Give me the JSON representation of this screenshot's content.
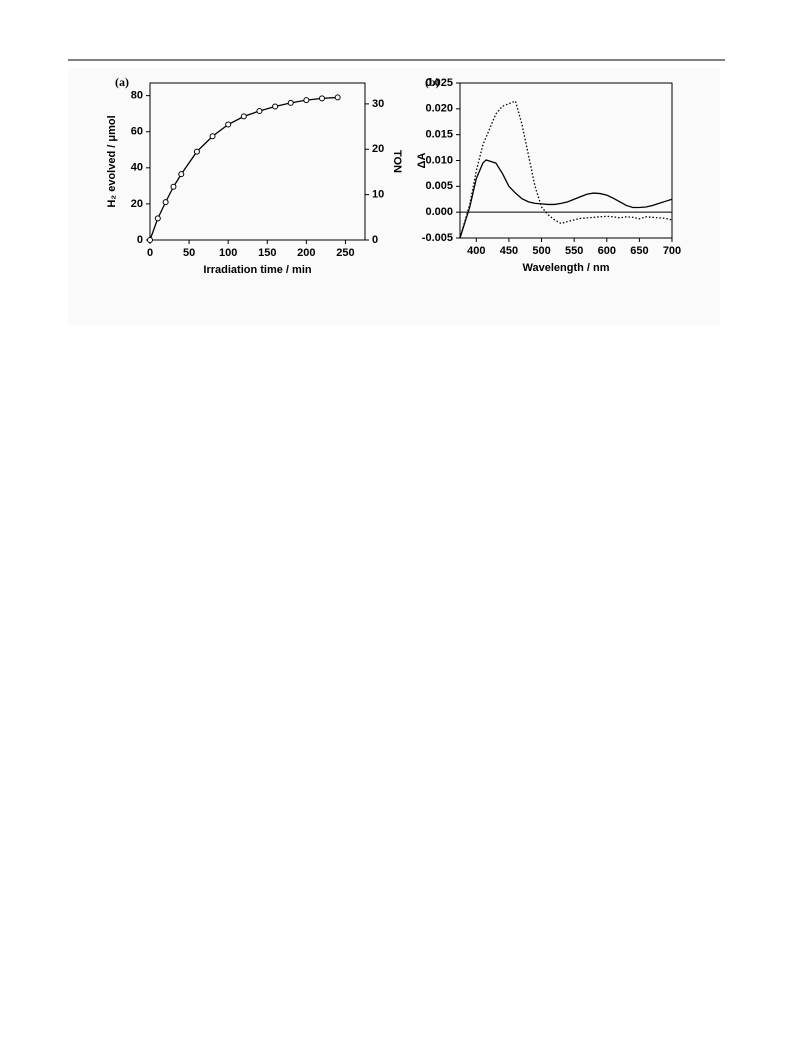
{
  "chart_data": [
    {
      "type": "line",
      "panel_label": "(a)",
      "x_label": "Irradiation time / min",
      "y_label": "H₂ evolved / μmol",
      "y2_label": "TON",
      "x": [
        0,
        10,
        20,
        30,
        40,
        60,
        80,
        100,
        120,
        140,
        160,
        180,
        200,
        220,
        240
      ],
      "series": [
        {
          "color": "#000000",
          "dash": "solid",
          "marker": "open-circle",
          "values": [
            0,
            12,
            21,
            29.5,
            36.5,
            49,
            57.5,
            64,
            68.5,
            71.5,
            74,
            76,
            77.5,
            78.5,
            79
          ]
        }
      ],
      "xlim": [
        0,
        275
      ],
      "xticks": [
        0,
        50,
        100,
        150,
        200,
        250
      ],
      "ylim": [
        0,
        87
      ],
      "yticks": [
        0,
        20,
        40,
        60,
        80
      ],
      "y2lim": [
        0,
        34.6
      ],
      "y2ticks": [
        0,
        10,
        20,
        30
      ]
    },
    {
      "type": "line",
      "panel_label": "(b)",
      "x_label": "Wavelength / nm",
      "y_label": "ΔA",
      "x": [
        375,
        390,
        400,
        410,
        415,
        420,
        430,
        440,
        450,
        460,
        470,
        480,
        490,
        500,
        510,
        520,
        530,
        540,
        550,
        560,
        570,
        580,
        590,
        600,
        610,
        620,
        630,
        640,
        650,
        660,
        670,
        680,
        690,
        700
      ],
      "series": [
        {
          "color": "#000000",
          "dash": "solid",
          "marker": "none",
          "values": [
            -0.005,
            0.001,
            0.0065,
            0.0095,
            0.0101,
            0.0099,
            0.0095,
            0.0075,
            0.005,
            0.0037,
            0.0026,
            0.002,
            0.0017,
            0.0016,
            0.0015,
            0.0015,
            0.0017,
            0.002,
            0.0025,
            0.003,
            0.0035,
            0.0037,
            0.0036,
            0.0033,
            0.0027,
            0.002,
            0.0013,
            0.0009,
            0.0009,
            0.001,
            0.0013,
            0.0017,
            0.0021,
            0.0025
          ]
        },
        {
          "color": "#000000",
          "dash": "dotted",
          "marker": "none",
          "values": [
            -0.005,
            0.0015,
            0.008,
            0.013,
            0.0145,
            0.016,
            0.019,
            0.0205,
            0.021,
            0.0215,
            0.017,
            0.011,
            0.005,
            0.001,
            -0.0005,
            -0.0015,
            -0.0022,
            -0.0018,
            -0.0015,
            -0.0012,
            -0.0011,
            -0.001,
            -0.0009,
            -0.0008,
            -0.0009,
            -0.0011,
            -0.0009,
            -0.001,
            -0.0013,
            -0.0009,
            -0.001,
            -0.0011,
            -0.0012,
            -0.0015
          ]
        }
      ],
      "xlim": [
        375,
        700
      ],
      "xticks": [
        400,
        450,
        500,
        550,
        600,
        650,
        700
      ],
      "ylim": [
        -0.005,
        0.025
      ],
      "yticks": [
        -0.005,
        {
          "value": 0,
          "label": "0.000"
        },
        0.005,
        {
          "value": 0.01,
          "label": "0.010"
        },
        0.015,
        {
          "value": 0.02,
          "label": "0.020"
        },
        0.025
      ],
      "zero_line": true
    }
  ]
}
